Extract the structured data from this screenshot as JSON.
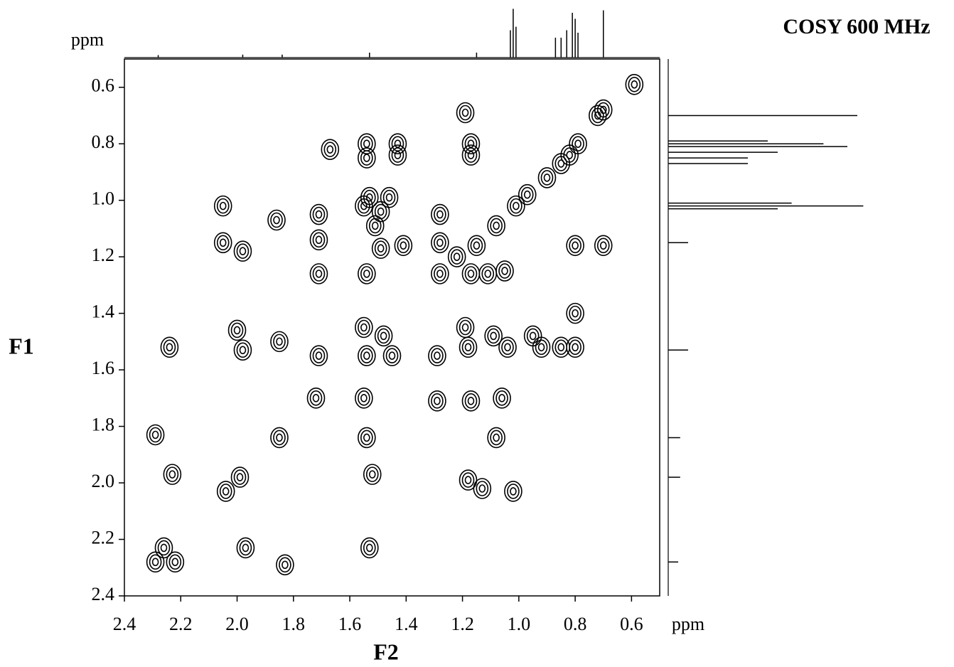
{
  "chart_data": {
    "type": "contour",
    "title": "COSY 600 MHz",
    "x_label": "F2",
    "y_label": "F1",
    "x_unit": "ppm",
    "y_unit": "ppm",
    "xlim": [
      2.4,
      0.5
    ],
    "ylim": [
      0.5,
      2.4
    ],
    "xticks": [
      2.4,
      2.2,
      {
        "value": 2,
        "label": "2.0"
      },
      1.8,
      1.6,
      1.4,
      1.2,
      {
        "value": 1,
        "label": "1.0"
      },
      0.8,
      0.6
    ],
    "yticks": [
      0.6,
      0.8,
      {
        "value": 1,
        "label": "1.0"
      },
      1.2,
      1.4,
      1.6,
      1.8,
      {
        "value": 2,
        "label": "2.0"
      },
      2.2,
      2.4
    ],
    "color": "#000000",
    "x": [
      0.59,
      0.7,
      0.72,
      0.79,
      0.82,
      0.85,
      0.9,
      0.97,
      1.01,
      1.08,
      1.15,
      1.22,
      1.19,
      1.17,
      1.17,
      1.54,
      1.54,
      1.43,
      1.43,
      1.67,
      1.53,
      1.46,
      1.55,
      1.49,
      1.51,
      1.49,
      1.41,
      2.05,
      2.05,
      1.98,
      1.86,
      1.71,
      1.71,
      1.71,
      1.54,
      1.28,
      1.28,
      1.28,
      1.17,
      1.11,
      1.05,
      0.8,
      0.7,
      0.8,
      0.8,
      0.85,
      2.24,
      2.0,
      1.98,
      1.85,
      1.71,
      1.55,
      1.48,
      1.54,
      1.45,
      1.29,
      1.19,
      1.18,
      1.09,
      1.04,
      0.95,
      0.92,
      1.72,
      1.55,
      1.29,
      1.17,
      1.06,
      2.29,
      1.85,
      1.54,
      1.08,
      2.23,
      2.04,
      1.99,
      1.52,
      1.18,
      1.13,
      1.02,
      2.26,
      2.22,
      2.29,
      1.97,
      1.83,
      1.53
    ],
    "y": [
      0.59,
      0.68,
      0.7,
      0.8,
      0.84,
      0.87,
      0.92,
      0.98,
      1.02,
      1.09,
      1.16,
      1.2,
      0.69,
      0.8,
      0.84,
      0.8,
      0.85,
      0.8,
      0.84,
      0.82,
      0.99,
      0.99,
      1.02,
      1.04,
      1.09,
      1.17,
      1.16,
      1.02,
      1.15,
      1.18,
      1.07,
      1.05,
      1.14,
      1.26,
      1.26,
      1.05,
      1.15,
      1.26,
      1.26,
      1.26,
      1.25,
      1.16,
      1.16,
      1.4,
      1.52,
      1.52,
      1.52,
      1.46,
      1.53,
      1.5,
      1.55,
      1.45,
      1.48,
      1.55,
      1.55,
      1.55,
      1.45,
      1.52,
      1.48,
      1.52,
      1.48,
      1.52,
      1.7,
      1.7,
      1.71,
      1.71,
      1.7,
      1.83,
      1.84,
      1.84,
      1.84,
      1.97,
      2.03,
      1.98,
      1.97,
      1.99,
      2.02,
      2.03,
      2.23,
      2.28,
      2.28,
      2.23,
      2.29,
      2.23
    ],
    "projection": {
      "ppm": [
        0.7,
        0.79,
        0.8,
        0.81,
        0.83,
        0.85,
        0.87,
        1.01,
        1.02,
        1.03,
        1.15,
        1.53,
        1.84,
        1.98,
        2.28
      ],
      "intensity": [
        0.95,
        0.5,
        0.78,
        0.9,
        0.55,
        0.4,
        0.4,
        0.62,
        0.98,
        0.55,
        0.1,
        0.1,
        0.06,
        0.06,
        0.05
      ]
    }
  }
}
